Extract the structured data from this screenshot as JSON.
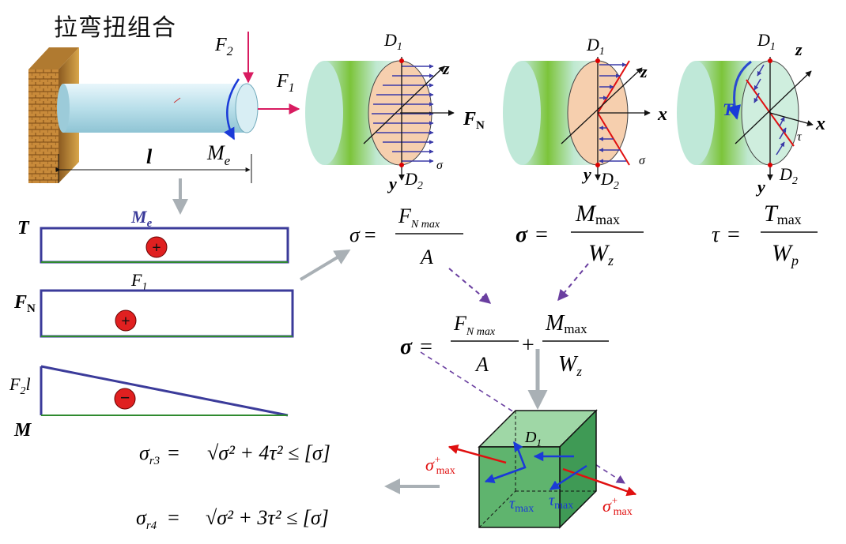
{
  "title": "拉弯扭组合",
  "labels": {
    "F2": "F",
    "F2_sub": "2",
    "F1": "F",
    "F1_sub": "1",
    "Me": "M",
    "Me_sub": "e",
    "l": "l",
    "D1": "D",
    "D1_sub": "1",
    "D2": "D",
    "D2_sub": "2",
    "y": "y",
    "z": "z",
    "x": "x",
    "FN": "F",
    "FN_sub": "N",
    "sigma": "σ",
    "tau": "τ",
    "T": "T"
  },
  "internal_force_diagrams": {
    "T": {
      "axis": "T",
      "value": "M",
      "value_sub": "e",
      "sign": "+"
    },
    "FN": {
      "axis": "F",
      "axis_sub": "N",
      "value": "F",
      "value_sub": "1",
      "sign": "+"
    },
    "M": {
      "axis": "M",
      "value": "F",
      "value_sub": "2",
      "value_suffix": "l",
      "sign": "−"
    }
  },
  "formulas": {
    "axial": {
      "lhs": "σ",
      "num": "F",
      "num_sub": "N max",
      "den": "A"
    },
    "bending": {
      "lhs": "σ",
      "num": "M",
      "num_sub": "max",
      "den": "W",
      "den_sub": "z"
    },
    "torsion": {
      "lhs": "τ",
      "num": "T",
      "num_sub": "max",
      "den": "W",
      "den_sub": "p"
    },
    "combined": {
      "lhs": "σ",
      "num1": "F",
      "num1_sub": "N max",
      "den1": "A",
      "num2": "M",
      "num2_sub": "max",
      "den2": "W",
      "den2_sub": "z"
    },
    "r3": {
      "lhs": "σ",
      "lhs_sub": "r3",
      "rhs": "√σ² + 4τ²  ≤ [σ]"
    },
    "r4": {
      "lhs": "σ",
      "lhs_sub": "r4",
      "rhs": "√σ² + 3τ²  ≤ [σ]"
    }
  },
  "element": {
    "D1": "D",
    "D1_sub": "1",
    "sigma_max": "σ",
    "sigma_max_sup": "+",
    "sigma_max_sub": "max",
    "tau_max": "τ",
    "tau_max_sub": "max"
  },
  "colors": {
    "force_red": "#d81b60",
    "moment_blue": "#1a3ad8",
    "diagram_border": "#3b3b9a",
    "baseline_green": "#2f8a2f",
    "dashed_purple": "#6a3fa0",
    "stress_red": "#e01010"
  }
}
